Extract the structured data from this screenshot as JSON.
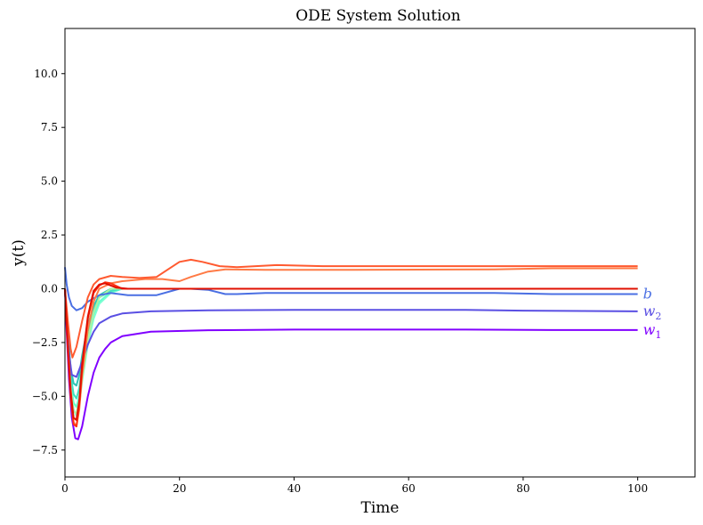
{
  "chart_data": {
    "type": "line",
    "title": "ODE System Solution",
    "xlabel": "Time",
    "ylabel": "y(t)",
    "xlim": [
      0,
      110
    ],
    "ylim": [
      -8.75,
      12.1
    ],
    "xticks": [
      0,
      20,
      40,
      60,
      80,
      100
    ],
    "xtick_labels": [
      "0",
      "20",
      "40",
      "60",
      "80",
      "100"
    ],
    "yticks": [
      -7.5,
      -5.0,
      -2.5,
      0.0,
      2.5,
      5.0,
      7.5,
      10.0
    ],
    "ytick_labels": [
      "−7.5",
      "−5.0",
      "−2.5",
      "0.0",
      "2.5",
      "5.0",
      "7.5",
      "10.0"
    ],
    "grid": false,
    "series": [
      {
        "color": "#7fffd4",
        "points": [
          [
            0,
            0
          ],
          [
            0.5,
            -2.5
          ],
          [
            1,
            -4.5
          ],
          [
            1.5,
            -5.6
          ],
          [
            2,
            -5.9
          ],
          [
            2.5,
            -5.4
          ],
          [
            3,
            -4.3
          ],
          [
            4,
            -2.6
          ],
          [
            5,
            -1.4
          ],
          [
            6,
            -0.7
          ],
          [
            8,
            -0.2
          ],
          [
            10,
            0.0
          ],
          [
            15,
            0.0
          ],
          [
            100,
            0.0
          ]
        ]
      },
      {
        "color": "#66ffcc",
        "points": [
          [
            0,
            0
          ],
          [
            0.5,
            -2.4
          ],
          [
            1,
            -4.3
          ],
          [
            1.5,
            -5.3
          ],
          [
            2,
            -5.5
          ],
          [
            2.5,
            -5.0
          ],
          [
            3,
            -4.0
          ],
          [
            4,
            -2.4
          ],
          [
            5,
            -1.2
          ],
          [
            6,
            -0.6
          ],
          [
            8,
            -0.15
          ],
          [
            10,
            0.0
          ],
          [
            100,
            0.0
          ]
        ]
      },
      {
        "color": "#40e0c0",
        "points": [
          [
            0,
            0
          ],
          [
            0.5,
            -2.2
          ],
          [
            1,
            -4.0
          ],
          [
            1.5,
            -4.9
          ],
          [
            2,
            -5.1
          ],
          [
            2.5,
            -4.6
          ],
          [
            3,
            -3.6
          ],
          [
            4,
            -2.0
          ],
          [
            5,
            -1.0
          ],
          [
            6,
            -0.4
          ],
          [
            8,
            -0.1
          ],
          [
            10,
            0.0
          ],
          [
            100,
            0.0
          ]
        ]
      },
      {
        "color": "#2ec4b6",
        "points": [
          [
            0,
            0
          ],
          [
            0.5,
            -2.0
          ],
          [
            1,
            -3.7
          ],
          [
            1.5,
            -4.4
          ],
          [
            2,
            -4.5
          ],
          [
            2.5,
            -4.0
          ],
          [
            3,
            -3.1
          ],
          [
            4,
            -1.7
          ],
          [
            5,
            -0.8
          ],
          [
            6,
            -0.3
          ],
          [
            8,
            0.0
          ],
          [
            100,
            0.0
          ]
        ]
      },
      {
        "color": "#b0f0a0",
        "points": [
          [
            0,
            0
          ],
          [
            0.5,
            -2.6
          ],
          [
            1,
            -4.6
          ],
          [
            1.5,
            -5.7
          ],
          [
            2,
            -5.8
          ],
          [
            2.5,
            -5.2
          ],
          [
            3,
            -4.2
          ],
          [
            4,
            -2.4
          ],
          [
            5,
            -1.1
          ],
          [
            6,
            -0.4
          ],
          [
            8,
            0.0
          ],
          [
            100,
            0.0
          ]
        ]
      },
      {
        "color": "#4a6fe3",
        "points": [
          [
            0,
            1.0
          ],
          [
            0.3,
            0.2
          ],
          [
            0.7,
            -0.4
          ],
          [
            1.2,
            -0.8
          ],
          [
            2,
            -1.0
          ],
          [
            3,
            -0.9
          ],
          [
            4,
            -0.6
          ],
          [
            6,
            -0.3
          ],
          [
            8,
            -0.2
          ],
          [
            11,
            -0.3
          ],
          [
            16,
            -0.3
          ],
          [
            20,
            0.0
          ],
          [
            22,
            0.0
          ],
          [
            25,
            -0.05
          ],
          [
            28,
            -0.25
          ],
          [
            30,
            -0.25
          ],
          [
            35,
            -0.2
          ],
          [
            60,
            -0.2
          ],
          [
            75,
            -0.2
          ],
          [
            85,
            -0.25
          ],
          [
            100,
            -0.25
          ]
        ]
      },
      {
        "color": "#5a4fe3",
        "points": [
          [
            0,
            0
          ],
          [
            0.3,
            -1.5
          ],
          [
            0.7,
            -3.0
          ],
          [
            1.2,
            -4.0
          ],
          [
            2,
            -4.1
          ],
          [
            3,
            -3.4
          ],
          [
            4,
            -2.6
          ],
          [
            5,
            -2.0
          ],
          [
            6,
            -1.6
          ],
          [
            8,
            -1.3
          ],
          [
            10,
            -1.15
          ],
          [
            15,
            -1.05
          ],
          [
            25,
            -1.0
          ],
          [
            40,
            -0.98
          ],
          [
            70,
            -0.98
          ],
          [
            80,
            -1.02
          ],
          [
            100,
            -1.05
          ]
        ]
      },
      {
        "color": "#8000ff",
        "points": [
          [
            0,
            0
          ],
          [
            0.3,
            -2.0
          ],
          [
            0.7,
            -4.2
          ],
          [
            1.2,
            -6.0
          ],
          [
            1.8,
            -6.95
          ],
          [
            2.3,
            -7.0
          ],
          [
            3,
            -6.4
          ],
          [
            4,
            -5.0
          ],
          [
            5,
            -3.9
          ],
          [
            6,
            -3.2
          ],
          [
            7,
            -2.8
          ],
          [
            8,
            -2.5
          ],
          [
            10,
            -2.2
          ],
          [
            15,
            -2.0
          ],
          [
            25,
            -1.93
          ],
          [
            40,
            -1.9
          ],
          [
            70,
            -1.9
          ],
          [
            85,
            -1.92
          ],
          [
            100,
            -1.92
          ]
        ]
      },
      {
        "color": "#ff7a45",
        "points": [
          [
            0,
            0
          ],
          [
            0.5,
            -2.5
          ],
          [
            1,
            -4.6
          ],
          [
            1.5,
            -6.2
          ],
          [
            2,
            -6.4
          ],
          [
            2.5,
            -5.6
          ],
          [
            3,
            -4.0
          ],
          [
            4,
            -1.9
          ],
          [
            5,
            -0.6
          ],
          [
            6,
            0.0
          ],
          [
            8,
            0.25
          ],
          [
            10,
            0.35
          ],
          [
            14,
            0.45
          ],
          [
            17,
            0.45
          ],
          [
            20,
            0.35
          ],
          [
            22,
            0.55
          ],
          [
            25,
            0.8
          ],
          [
            28,
            0.9
          ],
          [
            35,
            0.88
          ],
          [
            50,
            0.88
          ],
          [
            75,
            0.9
          ],
          [
            85,
            0.95
          ],
          [
            100,
            0.95
          ]
        ]
      },
      {
        "color": "#ff5a30",
        "points": [
          [
            0,
            0
          ],
          [
            0.5,
            -1.5
          ],
          [
            1,
            -2.8
          ],
          [
            1.3,
            -3.2
          ],
          [
            2,
            -2.7
          ],
          [
            3,
            -1.5
          ],
          [
            4,
            -0.4
          ],
          [
            5,
            0.2
          ],
          [
            6,
            0.45
          ],
          [
            8,
            0.6
          ],
          [
            10,
            0.55
          ],
          [
            13,
            0.5
          ],
          [
            16,
            0.55
          ],
          [
            18,
            0.9
          ],
          [
            20,
            1.25
          ],
          [
            22,
            1.35
          ],
          [
            24,
            1.25
          ],
          [
            27,
            1.05
          ],
          [
            30,
            1.0
          ],
          [
            37,
            1.1
          ],
          [
            45,
            1.05
          ],
          [
            100,
            1.05
          ]
        ]
      },
      {
        "color": "#ff3010",
        "points": [
          [
            0,
            0
          ],
          [
            0.5,
            -2.8
          ],
          [
            1,
            -5.0
          ],
          [
            1.5,
            -6.3
          ],
          [
            2,
            -6.4
          ],
          [
            2.5,
            -5.4
          ],
          [
            3,
            -3.7
          ],
          [
            4,
            -1.4
          ],
          [
            5,
            -0.2
          ],
          [
            6,
            0.15
          ],
          [
            7,
            0.3
          ],
          [
            8,
            0.25
          ],
          [
            10,
            0.0
          ],
          [
            12,
            0.0
          ],
          [
            100,
            0.0
          ]
        ]
      },
      {
        "color": "#e01000",
        "points": [
          [
            0,
            0
          ],
          [
            0.5,
            -2.6
          ],
          [
            1,
            -4.8
          ],
          [
            1.5,
            -6.0
          ],
          [
            2,
            -6.1
          ],
          [
            2.5,
            -5.2
          ],
          [
            3,
            -3.5
          ],
          [
            4,
            -1.3
          ],
          [
            5,
            -0.1
          ],
          [
            6,
            0.2
          ],
          [
            7,
            0.25
          ],
          [
            9,
            0.05
          ],
          [
            11,
            0.0
          ],
          [
            100,
            0.0
          ]
        ]
      }
    ],
    "end_labels": [
      {
        "base": "b",
        "sub": "",
        "color": "#4a6fe3",
        "y": -0.25
      },
      {
        "base": "w",
        "sub": "2",
        "color": "#5a4fe3",
        "y": -1.05
      },
      {
        "base": "w",
        "sub": "1",
        "color": "#8000ff",
        "y": -1.92
      }
    ]
  }
}
